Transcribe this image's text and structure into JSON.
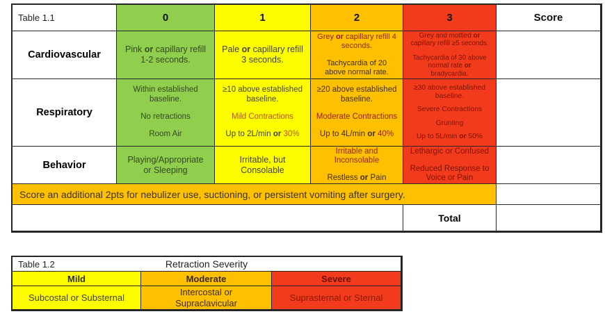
{
  "colors": {
    "green": "#90CE4E",
    "yellow": "#FDFD00",
    "orange": "#FFC000",
    "red": "#F23B1C"
  },
  "table1": {
    "title": "Table 1.1",
    "headers": [
      "0",
      "1",
      "2",
      "3"
    ],
    "score_header": "Score",
    "rows": [
      {
        "label": "Cardiovascular",
        "cells": [
          {
            "paras": [
              "Pink **or** capillary refill\n1-2 seconds."
            ]
          },
          {
            "paras": [
              "Pale **or** capillary refill\n3 seconds."
            ]
          },
          {
            "paras": [
              {
                "text": "Grey **or** capillary refill 4\nseconds.",
                "red": true
              },
              "Tachycardia of 20\nabove normal rate."
            ]
          },
          {
            "paras": [
              "Grey and mottled **or**\ncapillary refill ≥5 seconds.",
              "Tachycardia of 30 above\nnormal rate **or**\nbradycardia."
            ]
          }
        ]
      },
      {
        "label": "Respiratory",
        "cells": [
          {
            "paras": [
              "Within established\nbaseline.",
              "No retractions",
              "Room Air"
            ]
          },
          {
            "paras": [
              "≥10 above established\nbaseline.",
              {
                "text": "Mild Contractions",
                "red": true
              },
              "Up to 2L/min **or** [[30%]]"
            ]
          },
          {
            "paras": [
              "≥20 above established\nbaseline.",
              {
                "text": "Moderate Contractions",
                "red": true
              },
              "Up to 4L/min **or** [[40%]]"
            ]
          },
          {
            "paras": [
              "≥30 above established\nbaseline.",
              "Severe Contractions",
              "Grunting",
              "Up to 5L/min **or** 50%"
            ]
          }
        ]
      },
      {
        "label": "Behavior",
        "cells": [
          {
            "paras": [
              "Playing/Appropriate\nor Sleeping"
            ]
          },
          {
            "paras": [
              "Irritable, but\nConsolable"
            ]
          },
          {
            "paras": [
              {
                "text": "Irritable and\nInconsolable",
                "red": true
              },
              "Restless **or** Pain"
            ]
          },
          {
            "paras": [
              "Lethargic or Confused",
              "Reduced Response to\nVoice or Pain"
            ]
          }
        ]
      }
    ],
    "note": "Score an additional 2pts for nebulizer use, suctioning, or persistent vomiting after surgery.",
    "total_label": "Total"
  },
  "table2": {
    "title": "Table 1.2",
    "header": "Retraction Severity",
    "columns": [
      {
        "label": "Mild",
        "value": "Subcostal or Substernal"
      },
      {
        "label": "Moderate",
        "value": "Intercostal or\nSupraclavicular"
      },
      {
        "label": "Severe",
        "value": "Suprasternal or Sternal"
      }
    ]
  }
}
